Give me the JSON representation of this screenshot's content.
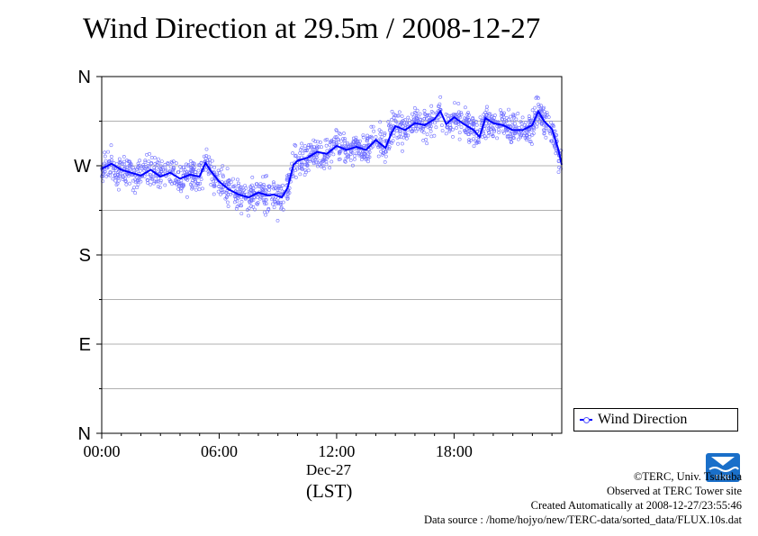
{
  "title": "Wind Direction at 29.5m / 2008-12-27",
  "x_sublabel": "Dec-27",
  "x_unit": "(LST)",
  "legend_label": "Wind Direction",
  "credits": [
    "©TERC, Univ. Tsukuba",
    "Observed at TERC Tower site",
    "Created Automatically at 2008-12-27/23:55:46",
    "Data source : /home/hojyo/new/TERC-data/sorted_data/FLUX.10s.dat"
  ],
  "logo_text": "TERC",
  "colors": {
    "line": "#0000ff",
    "scatter": "#6f6fff",
    "grid": "#b0b0b0",
    "logo": "#1a6fc9"
  },
  "chart_data": {
    "type": "line",
    "title": "Wind Direction at 29.5m / 2008-12-27",
    "xlabel": "(LST)",
    "ylabel": "",
    "x_ticks": [
      "00:00",
      "06:00",
      "12:00",
      "18:00"
    ],
    "y_ticks": [
      "N",
      "W",
      "S",
      "E",
      "N"
    ],
    "x_unit": "hours",
    "y_unit": "degrees (N=360, W=270, S=180, E=90, N=0)",
    "xlim": [
      0,
      23.5
    ],
    "ylim": [
      0,
      360
    ],
    "grid": true,
    "legend_position": "bottom-right-outside",
    "series": [
      {
        "name": "Wind Direction",
        "x": [
          0.0,
          0.5,
          1.0,
          1.5,
          2.0,
          2.5,
          3.0,
          3.5,
          4.0,
          4.5,
          5.0,
          5.3,
          5.6,
          6.0,
          6.5,
          7.0,
          7.5,
          8.0,
          8.5,
          8.8,
          9.2,
          9.5,
          9.8,
          10.0,
          10.5,
          11.0,
          11.5,
          12.0,
          12.5,
          13.0,
          13.5,
          14.0,
          14.5,
          14.8,
          15.0,
          15.5,
          16.0,
          16.5,
          17.0,
          17.3,
          17.6,
          18.0,
          18.5,
          19.0,
          19.3,
          19.6,
          20.0,
          20.5,
          21.0,
          21.5,
          22.0,
          22.3,
          22.6,
          23.0,
          23.3,
          23.5
        ],
        "y": [
          267,
          272,
          266,
          263,
          260,
          266,
          259,
          263,
          257,
          261,
          259,
          273,
          264,
          254,
          246,
          241,
          238,
          243,
          240,
          241,
          238,
          248,
          271,
          275,
          278,
          284,
          282,
          290,
          286,
          289,
          286,
          296,
          288,
          303,
          310,
          306,
          313,
          311,
          317,
          325,
          312,
          319,
          312,
          306,
          299,
          318,
          313,
          311,
          306,
          306,
          311,
          325,
          315,
          307,
          288,
          271
        ]
      }
    ],
    "scatter_note": "10-second observations scattered about the line"
  }
}
